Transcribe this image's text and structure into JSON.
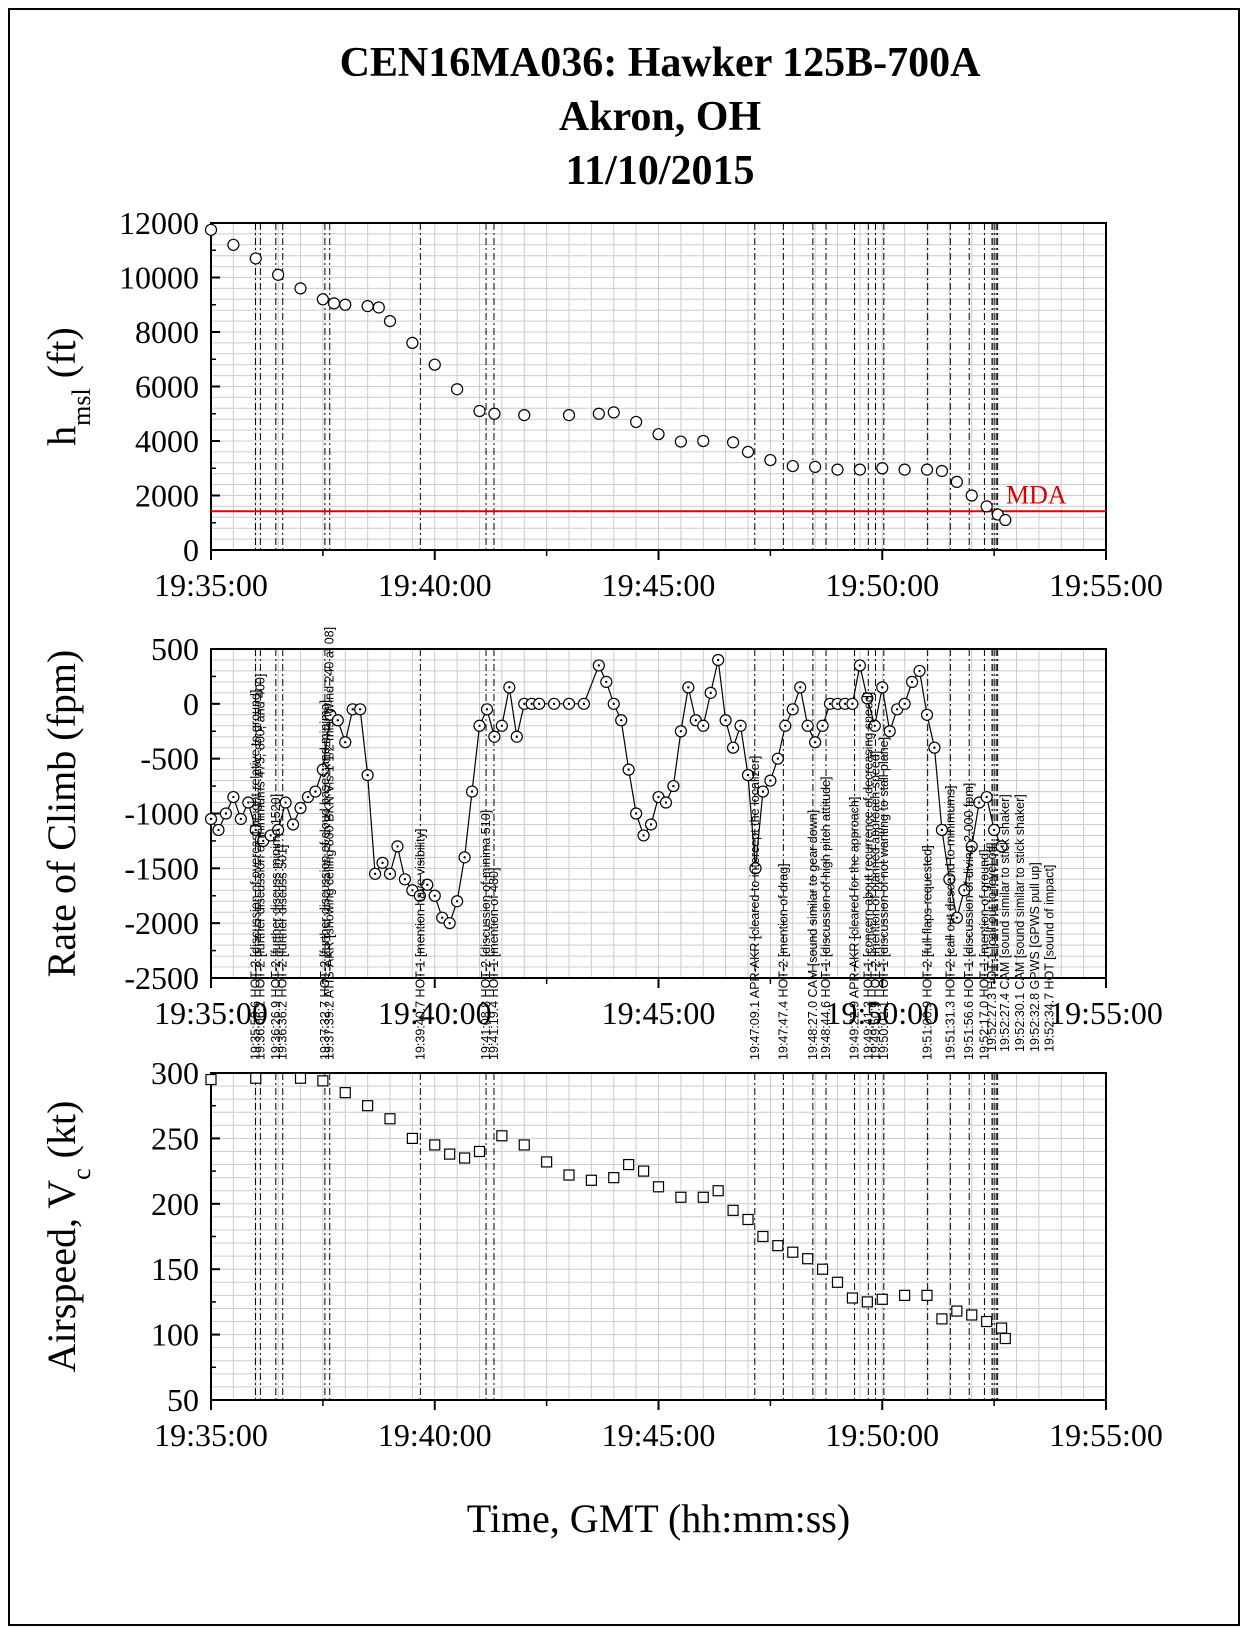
{
  "title_lines": [
    "CEN16MA036:  Hawker 125B-700A",
    "Akron, OH",
    "11/10/2015"
  ],
  "chart_data": [
    {
      "type": "scatter",
      "panel": "altitude",
      "ylabel_main": "h",
      "ylabel_sub": "msl",
      "ylabel_unit": "(ft)",
      "ylim": [
        0,
        12000
      ],
      "yticks": [
        0,
        2000,
        4000,
        6000,
        8000,
        10000,
        12000
      ],
      "xlim": [
        "19:35:00",
        "19:55:00"
      ],
      "xticks": [
        "19:35:00",
        "19:40:00",
        "19:45:00",
        "19:50:00",
        "19:55:00"
      ],
      "marker": "circle",
      "reference_line": {
        "label": "MDA",
        "y": 1420,
        "color": "#dd0000"
      },
      "x": [
        "19:35:00",
        "19:35:30",
        "19:36:00",
        "19:36:30",
        "19:37:00",
        "19:37:30",
        "19:37:45",
        "19:38:00",
        "19:38:30",
        "19:38:45",
        "19:39:00",
        "19:39:30",
        "19:40:00",
        "19:40:30",
        "19:41:00",
        "19:41:20",
        "19:42:00",
        "19:43:00",
        "19:43:40",
        "19:44:00",
        "19:44:30",
        "19:45:00",
        "19:45:30",
        "19:46:00",
        "19:46:40",
        "19:47:00",
        "19:47:30",
        "19:48:00",
        "19:48:30",
        "19:49:00",
        "19:49:30",
        "19:50:00",
        "19:50:30",
        "19:51:00",
        "19:51:20",
        "19:51:40",
        "19:52:00",
        "19:52:20",
        "19:52:35",
        "19:52:45"
      ],
      "y": [
        11750,
        11200,
        10700,
        10100,
        9600,
        9200,
        9050,
        9000,
        8950,
        8900,
        8400,
        7600,
        6800,
        5900,
        5100,
        5000,
        4950,
        4950,
        5000,
        5050,
        4700,
        4250,
        3980,
        4000,
        3950,
        3600,
        3300,
        3080,
        3050,
        2950,
        2950,
        3000,
        2950,
        2950,
        2900,
        2500,
        2000,
        1600,
        1300,
        1100
      ]
    },
    {
      "type": "line",
      "panel": "rate-of-climb",
      "ylabel": "Rate of Climb (fpm)",
      "ylim": [
        -2500,
        500
      ],
      "yticks": [
        -2500,
        -2000,
        -1500,
        -1000,
        -500,
        0,
        500
      ],
      "xlim": [
        "19:35:00",
        "19:55:00"
      ],
      "xticks": [
        "19:35:00",
        "19:40:00",
        "19:45:00",
        "19:50:00",
        "19:55:00"
      ],
      "marker": "circle",
      "x": [
        "19:35:00",
        "19:35:10",
        "19:35:20",
        "19:35:30",
        "19:35:40",
        "19:35:50",
        "19:36:00",
        "19:36:10",
        "19:36:20",
        "19:36:30",
        "19:36:40",
        "19:36:50",
        "19:37:00",
        "19:37:10",
        "19:37:20",
        "19:37:30",
        "19:37:40",
        "19:37:50",
        "19:38:00",
        "19:38:10",
        "19:38:20",
        "19:38:30",
        "19:38:40",
        "19:38:50",
        "19:39:00",
        "19:39:10",
        "19:39:20",
        "19:39:30",
        "19:39:40",
        "19:39:50",
        "19:40:00",
        "19:40:10",
        "19:40:20",
        "19:40:30",
        "19:40:40",
        "19:40:50",
        "19:41:00",
        "19:41:10",
        "19:41:20",
        "19:41:30",
        "19:41:40",
        "19:41:50",
        "19:42:00",
        "19:42:10",
        "19:42:20",
        "19:42:40",
        "19:43:00",
        "19:43:20",
        "19:43:40",
        "19:43:50",
        "19:44:00",
        "19:44:10",
        "19:44:20",
        "19:44:30",
        "19:44:40",
        "19:44:50",
        "19:45:00",
        "19:45:10",
        "19:45:20",
        "19:45:30",
        "19:45:40",
        "19:45:50",
        "19:46:00",
        "19:46:10",
        "19:46:20",
        "19:46:30",
        "19:46:40",
        "19:46:50",
        "19:47:00",
        "19:47:10",
        "19:47:20",
        "19:47:30",
        "19:47:40",
        "19:47:50",
        "19:48:00",
        "19:48:10",
        "19:48:20",
        "19:48:30",
        "19:48:40",
        "19:48:50",
        "19:49:00",
        "19:49:10",
        "19:49:20",
        "19:49:30",
        "19:49:40",
        "19:49:50",
        "19:50:00",
        "19:50:10",
        "19:50:20",
        "19:50:30",
        "19:50:40",
        "19:50:50",
        "19:51:00",
        "19:51:10",
        "19:51:20",
        "19:51:30",
        "19:51:40",
        "19:51:50",
        "19:52:00",
        "19:52:10",
        "19:52:20",
        "19:52:30",
        "19:52:40"
      ],
      "y": [
        -1050,
        -1150,
        -1000,
        -850,
        -1050,
        -900,
        -1150,
        -1250,
        -1200,
        -1150,
        -900,
        -1100,
        -950,
        -850,
        -800,
        -600,
        -100,
        -150,
        -350,
        -50,
        -50,
        -650,
        -1550,
        -1450,
        -1550,
        -1300,
        -1600,
        -1700,
        -1750,
        -1650,
        -1750,
        -1950,
        -2000,
        -1800,
        -1400,
        -800,
        -200,
        -50,
        -300,
        -200,
        150,
        -300,
        0,
        0,
        0,
        0,
        0,
        0,
        350,
        200,
        0,
        -150,
        -600,
        -1000,
        -1200,
        -1100,
        -850,
        -900,
        -750,
        -250,
        150,
        -150,
        -200,
        100,
        400,
        -150,
        -400,
        -200,
        -650,
        -1500,
        -800,
        -700,
        -500,
        -200,
        -50,
        150,
        -200,
        -350,
        -200,
        0,
        0,
        0,
        0,
        350,
        50,
        -200,
        150,
        -250,
        -50,
        0,
        200,
        300,
        -100,
        -400,
        -1150,
        -1600,
        -1950,
        -1700,
        -1300,
        -900,
        -850,
        -1150,
        -1300
      ]
    },
    {
      "type": "scatter",
      "panel": "airspeed",
      "ylabel_main": "Airspeed, V",
      "ylabel_sub": "c",
      "ylabel_unit": "(kt)",
      "ylim": [
        50,
        300
      ],
      "yticks": [
        50,
        100,
        150,
        200,
        250,
        300
      ],
      "xlim": [
        "19:35:00",
        "19:55:00"
      ],
      "xticks": [
        "19:35:00",
        "19:40:00",
        "19:45:00",
        "19:50:00",
        "19:55:00"
      ],
      "xlabel": "Time, GMT (hh:mm:ss)",
      "marker": "square",
      "x": [
        "19:35:00",
        "19:36:00",
        "19:37:00",
        "19:37:30",
        "19:38:00",
        "19:38:30",
        "19:39:00",
        "19:39:30",
        "19:40:00",
        "19:40:20",
        "19:40:40",
        "19:41:00",
        "19:41:30",
        "19:42:00",
        "19:42:30",
        "19:43:00",
        "19:43:30",
        "19:44:00",
        "19:44:20",
        "19:44:40",
        "19:45:00",
        "19:45:30",
        "19:46:00",
        "19:46:20",
        "19:46:40",
        "19:47:00",
        "19:47:20",
        "19:47:40",
        "19:48:00",
        "19:48:20",
        "19:48:40",
        "19:49:00",
        "19:49:20",
        "19:49:40",
        "19:50:00",
        "19:50:30",
        "19:51:00",
        "19:51:20",
        "19:51:40",
        "19:52:00",
        "19:52:20",
        "19:52:40",
        "19:52:45"
      ],
      "y": [
        295,
        296,
        296,
        294,
        285,
        275,
        265,
        250,
        245,
        238,
        235,
        240,
        252,
        245,
        232,
        222,
        218,
        220,
        230,
        225,
        213,
        205,
        205,
        210,
        195,
        188,
        175,
        168,
        163,
        158,
        150,
        140,
        128,
        125,
        127,
        130,
        130,
        112,
        118,
        115,
        110,
        105,
        97
      ]
    }
  ],
  "event_times": [
    "19:35:59.6",
    "19:36:06.2",
    "19:36:26.9",
    "19:36:36.2",
    "19:37:32.7",
    "19:37:39.2",
    "19:39:40.7",
    "19:41:08.8",
    "19:41:19.4",
    "19:47:09.1",
    "19:47:47.4",
    "19:48:27.0",
    "19:48:44.6",
    "19:49:22.9",
    "19:49:41.3",
    "19:49:50.9",
    "19:50:02.1",
    "19:51:00.9",
    "19:51:31.3",
    "19:51:56.6",
    "19:52:17.0",
    "19:52:27.3",
    "19:52:27.4",
    "19:52:30.1",
    "19:52:32.8",
    "19:52:34.7"
  ],
  "annotations": [
    {
      "time": "19:35:59.6",
      "text": "19:35:59.6 HOT-2 [discussion of overcast height relative to ground]"
    },
    {
      "time": "19:36:06.2",
      "text": "19:36:06.2 HOT-2 [further discussion of minimums 475, 800, and 400]"
    },
    {
      "time": "19:36:26.9",
      "text": "19:36:26.9 HOT-2 [further discuss minima 1520]"
    },
    {
      "time": "19:36:36.2",
      "text": "19:36:36.2 HOT-2 [further discuss 501]"
    },
    {
      "time": "19:37:32.7",
      "text": "19:37:32.7 HOT-2 [further discussion of cloud bases and minima]"
    },
    {
      "time": "19:37:39.2",
      "text": "19:37:39.2 ATIS-AKR [showing ceiling 800 BKN Vis 1 1/2 mist Wind 240 at 08]"
    },
    {
      "time": "19:39:40.7",
      "text": "19:39:40.7 HOT-1 [mention have visibility]"
    },
    {
      "time": "19:41:08.8",
      "text": "19:41:08.8 HOT-2 [discussion of minima 510]"
    },
    {
      "time": "19:41:19.4",
      "text": "19:41:19.4 HOT-1 [mention of 480]"
    },
    {
      "time": "19:47:09.1",
      "text": "19:47:09.1 APR-AKR [cleared to intercept the localizer]"
    },
    {
      "time": "19:47:47.4",
      "text": "19:47:47.4 HOT-2 [mention of drag]"
    },
    {
      "time": "19:48:27.0",
      "text": "19:48:27.0 CAM [sound similar to gear down]"
    },
    {
      "time": "19:48:44.6",
      "text": "19:48:44.6 HOT-1 [discussion of high pitch attitude]"
    },
    {
      "time": "19:49:22.9",
      "text": "19:49:22.9 APR-AKR [cleared for the approach]"
    },
    {
      "time": "19:49:41.3",
      "text": "19:49:41.3 HOT-1 [concern about recurrence of decreasing speed]"
    },
    {
      "time": "19:49:50.9",
      "text": "19:49:50.9 HOT-2 [mention of planned approach speed]"
    },
    {
      "time": "19:50:02.1",
      "text": "19:50:02.1 HOT-1 [discussion of not wanting to stall plane]"
    },
    {
      "time": "19:51:00.9",
      "text": "19:51:00.9 HOT-2 [full flaps requested]"
    },
    {
      "time": "19:51:31.3",
      "text": "19:51:31.3 HOT-2 [call out descend to minimums]"
    },
    {
      "time": "19:51:56.6",
      "text": "19:51:56.6 HOT-1 [discussion of diving 2,000 fpm]"
    },
    {
      "time": "19:52:17.0",
      "text": "19:52:17.0 HOT-1 [mention of ground]"
    },
    {
      "time": "19:52:27.3",
      "text": "19:52:27.3 HOT-1 [call out to level off]"
    },
    {
      "time": "19:52:27.4",
      "text": "19:52:27.4 CAM [sound similar to stick shaker]"
    },
    {
      "time": "19:52:30.1",
      "text": "19:52:30.1 CAM [sound similar to stick shaker]"
    },
    {
      "time": "19:52:32.8",
      "text": "19:52:32.8 GPWS [GPWS pull up]"
    },
    {
      "time": "19:52:34.7",
      "text": "19:52:34.7 HOT [sound of impact]"
    }
  ]
}
